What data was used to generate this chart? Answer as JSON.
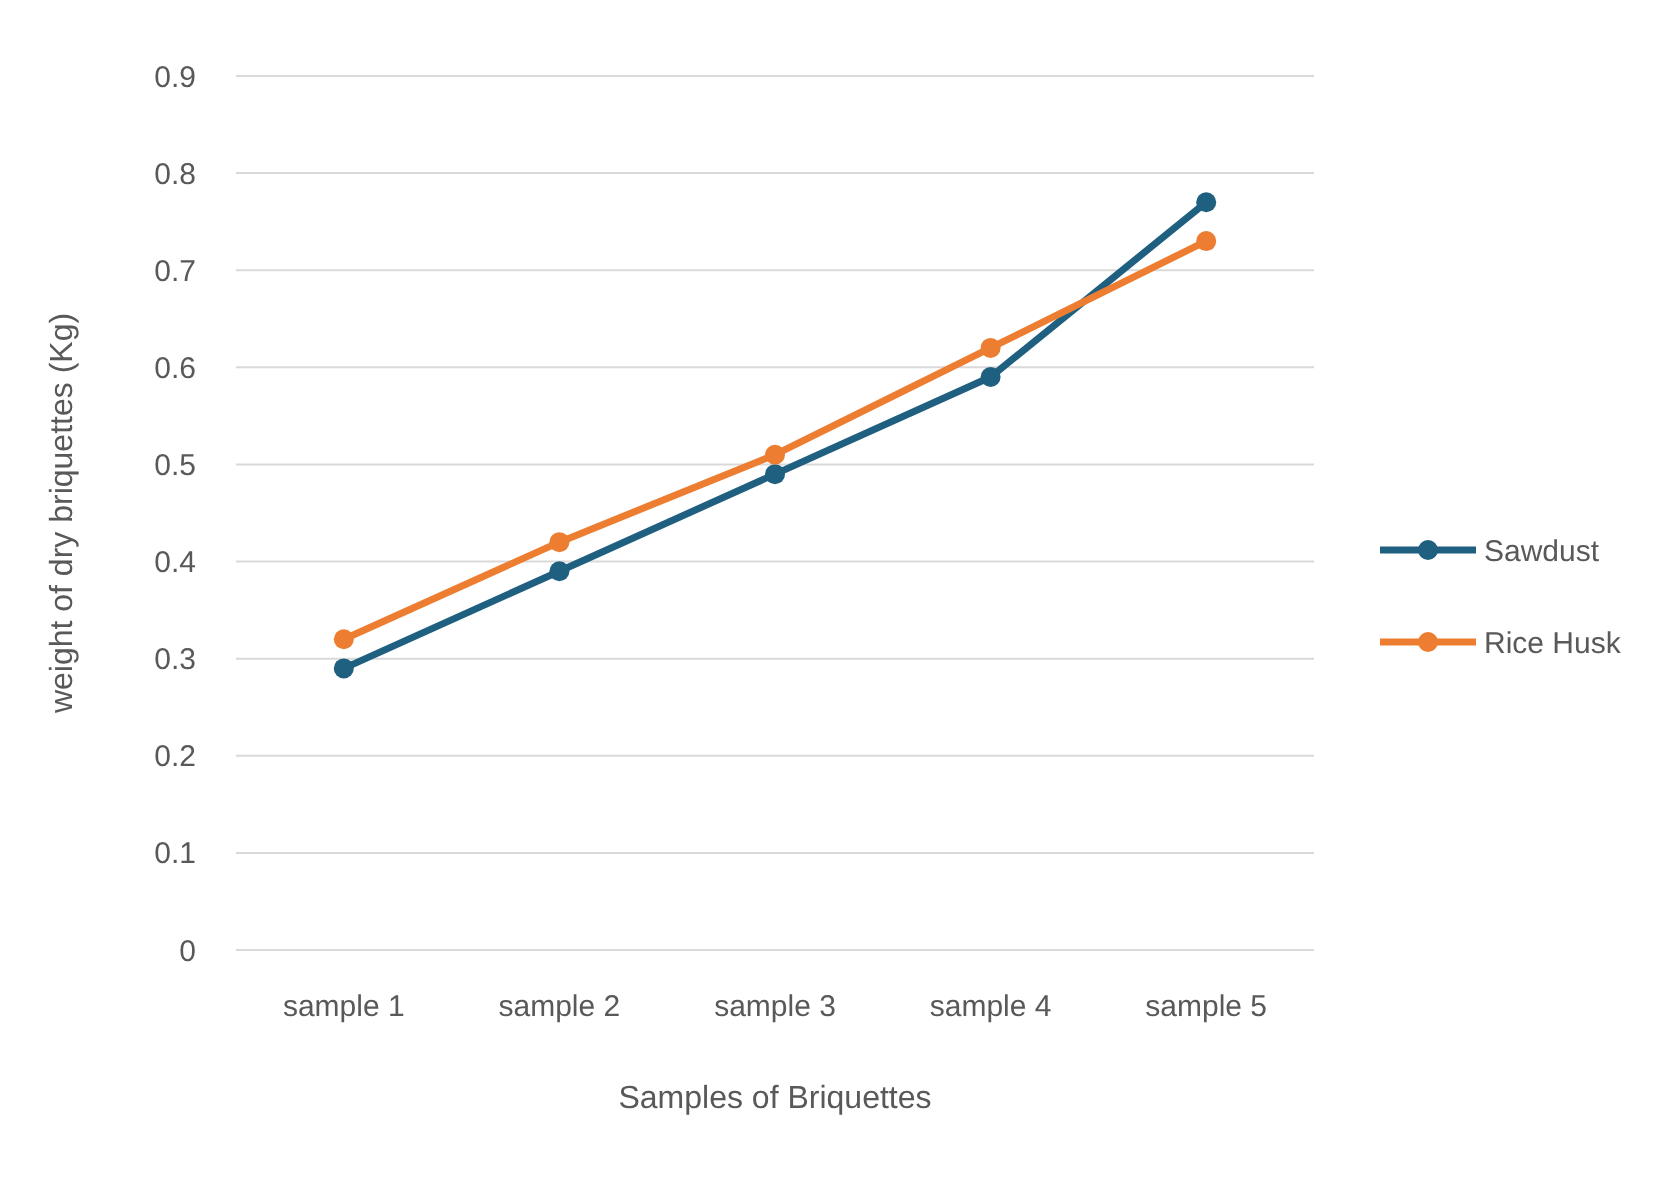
{
  "chart_data": {
    "type": "line",
    "xlabel": "Samples of Briquettes",
    "ylabel": "weight of dry briquettes (Kg)",
    "categories": [
      "sample 1",
      "sample 2",
      "sample 3",
      "sample 4",
      "sample 5"
    ],
    "series": [
      {
        "name": "Sawdust",
        "color": "#1f5f80",
        "values": [
          0.29,
          0.39,
          0.49,
          0.59,
          0.77
        ]
      },
      {
        "name": "Rice Husk",
        "color": "#ed7d31",
        "values": [
          0.32,
          0.42,
          0.51,
          0.62,
          0.73
        ]
      }
    ],
    "ylim": [
      0,
      0.9
    ],
    "yticks": [
      0,
      0.1,
      0.2,
      0.3,
      0.4,
      0.5,
      0.6,
      0.7,
      0.8,
      0.9
    ],
    "grid": "y",
    "legend": "right",
    "marker": "circle",
    "line_style": "solid"
  }
}
